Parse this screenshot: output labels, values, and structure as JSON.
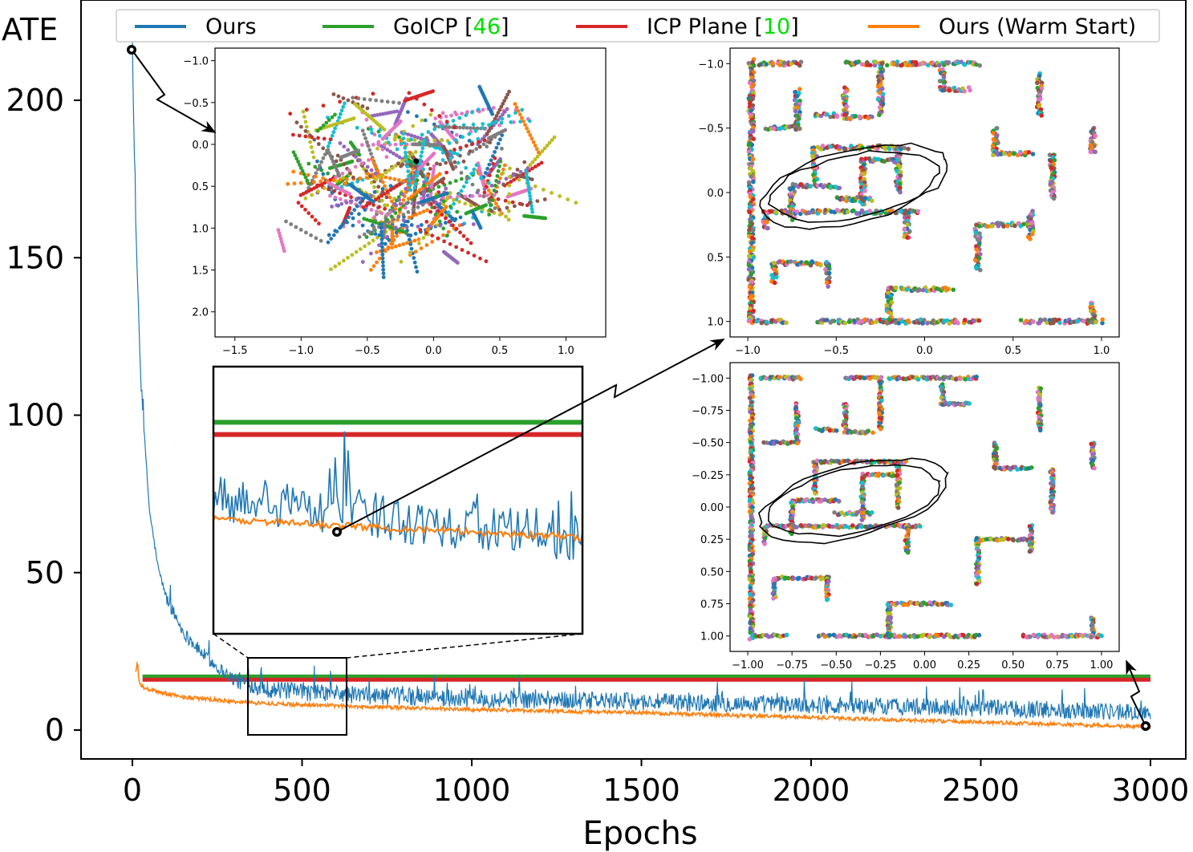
{
  "chart_data": [
    {
      "id": "main",
      "type": "line",
      "ylabel": "ATE",
      "xlabel": "Epochs",
      "xlim": [
        -150,
        3000
      ],
      "ylim": [
        -8,
        225
      ],
      "xticks": [
        0,
        500,
        1000,
        1500,
        2000,
        2500,
        3000
      ],
      "yticks": [
        0,
        50,
        100,
        150,
        200
      ],
      "grid": false,
      "legend": {
        "placement": "top",
        "entries": [
          {
            "series": "ours",
            "text": "Ours",
            "ref": ""
          },
          {
            "series": "goicp",
            "text": "GoICP [",
            "ref": "46",
            "suffix": "]"
          },
          {
            "series": "icp_plane",
            "text": "ICP Plane [",
            "ref": "10",
            "suffix": "]"
          },
          {
            "series": "warm",
            "text": "Ours (Warm Start)",
            "ref": ""
          }
        ]
      },
      "series": [
        {
          "key": "ours",
          "name": "Ours",
          "color": "#1f77b4",
          "points": [
            [
              0,
              216
            ],
            [
              10,
              160
            ],
            [
              25,
              110
            ],
            [
              50,
              70
            ],
            [
              75,
              52
            ],
            [
              100,
              42
            ],
            [
              150,
              31
            ],
            [
              200,
              25
            ],
            [
              250,
              20
            ],
            [
              300,
              16
            ],
            [
              400,
              13
            ],
            [
              500,
              12
            ],
            [
              700,
              11
            ],
            [
              1000,
              10
            ],
            [
              1500,
              9
            ],
            [
              2000,
              8
            ],
            [
              2500,
              7
            ],
            [
              2900,
              6
            ],
            [
              3000,
              5
            ]
          ]
        },
        {
          "key": "goicp",
          "name": "GoICP [46]",
          "color": "#2ca02c",
          "points": [
            [
              30,
              17
            ],
            [
              3000,
              17
            ]
          ]
        },
        {
          "key": "icp_plane",
          "name": "ICP Plane [10]",
          "color": "#d62728",
          "points": [
            [
              30,
              16
            ],
            [
              3000,
              16
            ]
          ]
        },
        {
          "key": "warm",
          "name": "Ours (Warm Start)",
          "color": "#ff7f0e",
          "points": [
            [
              10,
              18
            ],
            [
              15,
              22
            ],
            [
              20,
              15
            ],
            [
              40,
              13
            ],
            [
              80,
              12
            ],
            [
              150,
              10.5
            ],
            [
              300,
              9
            ],
            [
              500,
              8
            ],
            [
              1000,
              6.5
            ],
            [
              1500,
              5.5
            ],
            [
              2000,
              4
            ],
            [
              2500,
              2.5
            ],
            [
              3000,
              1
            ]
          ]
        }
      ],
      "markers": [
        [
          0,
          216
        ],
        [
          600,
          62
        ],
        [
          2980,
          1
        ]
      ]
    },
    {
      "id": "inset-initial",
      "type": "scatter",
      "xlim": [
        -1.65,
        1.3
      ],
      "ylim": [
        2.3,
        -1.15
      ],
      "xticks": [
        -1.5,
        -1.0,
        -0.5,
        0.0,
        0.5,
        1.0
      ],
      "yticks": [
        -1.0,
        -0.5,
        0.0,
        0.5,
        1.0,
        1.5,
        2.0
      ],
      "xtick_labels": [
        "−1.5",
        "−1.0",
        "−0.5",
        "0.0",
        "0.5",
        "1.0"
      ],
      "ytick_labels": [
        "−1.0",
        "−0.5",
        "0.0",
        "0.5",
        "1.0",
        "1.5",
        "2.0"
      ],
      "description_points": "misaligned multi-colored point clouds scattered roughly between x −1.3..1.2, y −1.0..2.2"
    },
    {
      "id": "inset-after",
      "type": "scatter",
      "xlim": [
        -1.1,
        1.1
      ],
      "ylim": [
        1.12,
        -1.12
      ],
      "xticks": [
        -1.0,
        -0.5,
        0.0,
        0.5,
        1.0
      ],
      "yticks": [
        -1.0,
        -0.5,
        0.0,
        0.5,
        1.0
      ],
      "xtick_labels": [
        "−1.0",
        "−0.5",
        "0.0",
        "0.5",
        "1.0"
      ],
      "ytick_labels": [
        "−1.0",
        "−0.5",
        "0.0",
        "0.5",
        "1.0"
      ]
    },
    {
      "id": "inset-warm",
      "type": "scatter",
      "xlim": [
        -1.1,
        1.1
      ],
      "ylim": [
        1.12,
        -1.12
      ],
      "xticks": [
        -1.0,
        -0.75,
        -0.5,
        -0.25,
        0.0,
        0.25,
        0.5,
        0.75,
        1.0
      ],
      "yticks": [
        -1.0,
        -0.75,
        -0.5,
        -0.25,
        0.0,
        0.25,
        0.5,
        0.75,
        1.0
      ],
      "xtick_labels": [
        "−1.00",
        "−0.75",
        "−0.50",
        "−0.25",
        "0.00",
        "0.25",
        "0.50",
        "0.75",
        "1.00"
      ],
      "ytick_labels": [
        "−1.00",
        "−0.75",
        "−0.50",
        "−0.25",
        "0.00",
        "0.25",
        "0.50",
        "0.75",
        "1.00"
      ]
    },
    {
      "id": "inset-zoom",
      "type": "line",
      "xlim": [
        340,
        640
      ],
      "ylim": [
        0,
        24
      ]
    }
  ],
  "colors": {
    "ours": "#1f77b4",
    "goicp": "#2ca02c",
    "icp_plane": "#d62728",
    "warm": "#ff7f0e",
    "citation": "#00dd00"
  },
  "maze_segments": [
    [
      [
        -0.98,
        -1.02
      ],
      [
        -0.98,
        1.02
      ]
    ],
    [
      [
        -0.97,
        1.0
      ],
      [
        -0.78,
        1.0
      ]
    ],
    [
      [
        -0.6,
        1.0
      ],
      [
        0.3,
        1.0
      ]
    ],
    [
      [
        0.55,
        1.0
      ],
      [
        1.0,
        1.0
      ]
    ],
    [
      [
        -0.93,
        -1.0
      ],
      [
        -0.7,
        -1.0
      ]
    ],
    [
      [
        -0.45,
        -1.0
      ],
      [
        -0.25,
        -1.0
      ]
    ],
    [
      [
        -0.2,
        -1.0
      ],
      [
        0.3,
        -1.0
      ]
    ],
    [
      [
        -0.25,
        -1.0
      ],
      [
        -0.25,
        -0.6
      ]
    ],
    [
      [
        -0.45,
        -0.8
      ],
      [
        -0.45,
        -0.58
      ]
    ],
    [
      [
        -0.45,
        -0.58
      ],
      [
        -0.3,
        -0.58
      ]
    ],
    [
      [
        -0.72,
        -0.8
      ],
      [
        -0.72,
        -0.5
      ]
    ],
    [
      [
        -0.9,
        -0.5
      ],
      [
        -0.72,
        -0.5
      ]
    ],
    [
      [
        -0.62,
        -0.6
      ],
      [
        -0.5,
        -0.6
      ]
    ],
    [
      [
        0.1,
        -0.95
      ],
      [
        0.1,
        -0.8
      ]
    ],
    [
      [
        0.1,
        -0.8
      ],
      [
        0.25,
        -0.8
      ]
    ],
    [
      [
        0.4,
        -0.5
      ],
      [
        0.4,
        -0.3
      ]
    ],
    [
      [
        0.4,
        -0.3
      ],
      [
        0.6,
        -0.3
      ]
    ],
    [
      [
        0.65,
        -0.92
      ],
      [
        0.65,
        -0.6
      ]
    ],
    [
      [
        0.72,
        -0.3
      ],
      [
        0.72,
        0.05
      ]
    ],
    [
      [
        0.95,
        -0.5
      ],
      [
        0.95,
        -0.3
      ]
    ],
    [
      [
        0.3,
        0.25
      ],
      [
        0.6,
        0.25
      ]
    ],
    [
      [
        0.3,
        0.25
      ],
      [
        0.3,
        0.6
      ]
    ],
    [
      [
        0.6,
        0.15
      ],
      [
        0.6,
        0.35
      ]
    ],
    [
      [
        -0.85,
        0.55
      ],
      [
        -0.55,
        0.55
      ]
    ],
    [
      [
        -0.85,
        0.55
      ],
      [
        -0.85,
        0.7
      ]
    ],
    [
      [
        -0.55,
        0.55
      ],
      [
        -0.55,
        0.72
      ]
    ],
    [
      [
        -0.2,
        0.75
      ],
      [
        -0.2,
        1.0
      ]
    ],
    [
      [
        -0.2,
        0.75
      ],
      [
        0.15,
        0.75
      ]
    ],
    [
      [
        0.95,
        0.85
      ],
      [
        0.95,
        1.0
      ]
    ],
    [
      [
        -0.75,
        -0.05
      ],
      [
        -0.48,
        -0.05
      ]
    ],
    [
      [
        -0.75,
        -0.05
      ],
      [
        -0.75,
        0.2
      ]
    ],
    [
      [
        -0.62,
        -0.35
      ],
      [
        -0.62,
        -0.1
      ]
    ],
    [
      [
        -0.6,
        -0.35
      ],
      [
        -0.1,
        -0.35
      ]
    ],
    [
      [
        -0.15,
        -0.35
      ],
      [
        -0.15,
        0.0
      ]
    ],
    [
      [
        -0.35,
        -0.25
      ],
      [
        -0.35,
        0.1
      ]
    ],
    [
      [
        -0.35,
        -0.25
      ],
      [
        -0.15,
        -0.25
      ]
    ],
    [
      [
        -0.9,
        0.15
      ],
      [
        -0.3,
        0.15
      ]
    ],
    [
      [
        -0.9,
        0.15
      ],
      [
        -0.9,
        0.28
      ]
    ],
    [
      [
        -0.3,
        0.15
      ],
      [
        -0.03,
        0.15
      ]
    ],
    [
      [
        -0.1,
        0.15
      ],
      [
        -0.1,
        0.35
      ]
    ],
    [
      [
        -0.5,
        0.05
      ],
      [
        -0.3,
        0.05
      ]
    ]
  ],
  "scatter_palette": [
    "#1f77b4",
    "#ff7f0e",
    "#2ca02c",
    "#d62728",
    "#9467bd",
    "#8c564b",
    "#e377c2",
    "#7f7f7f",
    "#bcbd22",
    "#17becf"
  ]
}
